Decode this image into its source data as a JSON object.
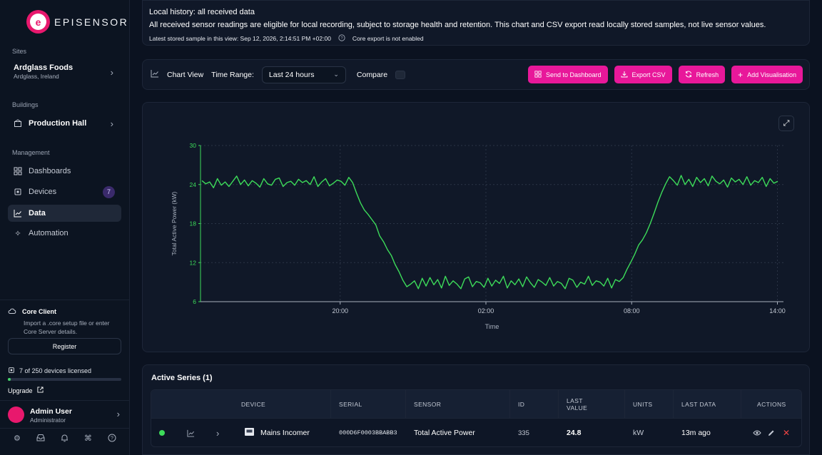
{
  "brand": {
    "mark_letter": "e",
    "name": "EPISENSOR",
    "color": "#e8186d"
  },
  "sidebar": {
    "sites_heading": "Sites",
    "site": {
      "name": "Ardglass Foods",
      "location": "Ardglass, Ireland"
    },
    "buildings_heading": "Buildings",
    "building": {
      "name": "Production Hall"
    },
    "management_heading": "Management",
    "items": [
      {
        "label": "Dashboards",
        "icon": "grid-icon"
      },
      {
        "label": "Devices",
        "icon": "chip-icon",
        "badge": "7"
      },
      {
        "label": "Data",
        "icon": "line-chart-icon",
        "active": true
      },
      {
        "label": "Automation",
        "icon": "sparkle-icon"
      }
    ],
    "core": {
      "title": "Core Client",
      "desc": "Import a .core setup file or enter Core Server details.",
      "register_label": "Register"
    },
    "license": {
      "text": "7 of 250 devices licensed",
      "used": 7,
      "total": 250,
      "upgrade_label": "Upgrade"
    },
    "user": {
      "name": "Admin User",
      "role": "Administrator"
    },
    "footer_icons": [
      "settings-icon",
      "inbox-icon",
      "bell-icon",
      "command-icon",
      "help-icon"
    ]
  },
  "info": {
    "title": "Local history: all received data",
    "description": "All received sensor readings are eligible for local recording, subject to storage health and retention. This chart and CSV export read locally stored samples, not live sensor values.",
    "latest": "Latest stored sample in this view: Sep 12, 2026, 2:14:51 PM +02:00",
    "core_export": "Core export is not enabled"
  },
  "toolbar": {
    "chart_view_label": "Chart View",
    "time_range_label": "Time Range:",
    "time_range_value": "Last 24 hours",
    "compare_label": "Compare",
    "buttons": {
      "send": "Send to Dashboard",
      "export": "Export CSV",
      "refresh": "Refresh",
      "add": "Add Visualisation"
    }
  },
  "chart_data": {
    "type": "line",
    "title": "",
    "xlabel": "Time",
    "ylabel": "Total Active Power (kW)",
    "ylim": [
      6,
      30
    ],
    "yticks": [
      6,
      12,
      18,
      24,
      30
    ],
    "xticks": [
      "20:00",
      "02:00",
      "08:00",
      "14:00"
    ],
    "x_start": "14:15",
    "x_end": "14:15",
    "grid": true,
    "color": "#3ddc5a",
    "series": [
      {
        "values": [
          24.6,
          24.1,
          24.4,
          23.5,
          24.9,
          23.9,
          24.4,
          23.7,
          24.5,
          25.3,
          24.0,
          24.7,
          23.8,
          24.6,
          24.2,
          23.6,
          24.9,
          24.1,
          23.9,
          24.8,
          25.0,
          23.7,
          24.3,
          24.5,
          23.9,
          24.8,
          24.3,
          24.6,
          24.0,
          25.2,
          23.7,
          24.4,
          24.9,
          23.8,
          24.2,
          24.7,
          24.5,
          23.9,
          25.1,
          24.3,
          22.7,
          21.2,
          20.1,
          19.4,
          18.6,
          17.8,
          16.1,
          15.2,
          14.0,
          13.1,
          11.7,
          10.6,
          9.3,
          8.3,
          8.7,
          9.2,
          8.0,
          9.6,
          8.4,
          9.7,
          8.6,
          9.4,
          8.1,
          9.9,
          8.5,
          9.2,
          8.7,
          8.0,
          9.5,
          9.8,
          8.3,
          9.1,
          8.9,
          8.2,
          9.6,
          8.4,
          9.3,
          8.8,
          9.9,
          8.1,
          9.2,
          8.6,
          9.5,
          8.3,
          9.8,
          8.9,
          8.2,
          9.4,
          9.0,
          8.5,
          9.7,
          8.4,
          9.1,
          8.8,
          8.0,
          9.6,
          9.3,
          8.2,
          9.0,
          8.7,
          9.9,
          8.5,
          9.2,
          9.0,
          8.4,
          9.6,
          8.1,
          9.4,
          9.1,
          9.7,
          11.0,
          12.1,
          13.3,
          14.7,
          15.5,
          16.6,
          18.0,
          19.6,
          21.3,
          22.8,
          24.1,
          25.2,
          24.6,
          23.9,
          25.4,
          24.0,
          24.8,
          23.7,
          25.1,
          24.3,
          24.9,
          23.8,
          25.3,
          24.5,
          24.1,
          24.7,
          23.6,
          25.0,
          24.4,
          24.8,
          24.0,
          25.2,
          23.9,
          24.6,
          24.3,
          25.1,
          23.7,
          24.9,
          24.2,
          24.5
        ]
      }
    ]
  },
  "table": {
    "title": "Active Series (1)",
    "headers": {
      "device": "DEVICE",
      "serial": "SERIAL",
      "sensor": "SENSOR",
      "id": "ID",
      "last_value": "LAST VALUE",
      "units": "UNITS",
      "last_data": "LAST DATA",
      "actions": "ACTIONS"
    },
    "rows": [
      {
        "device": "Mains Incomer",
        "serial": "000D6F0003BBABB3",
        "sensor": "Total Active Power",
        "id": "335",
        "last_value": "24.8",
        "units": "kW",
        "last_data": "13m ago",
        "status_color": "#3ddc5a"
      }
    ]
  }
}
